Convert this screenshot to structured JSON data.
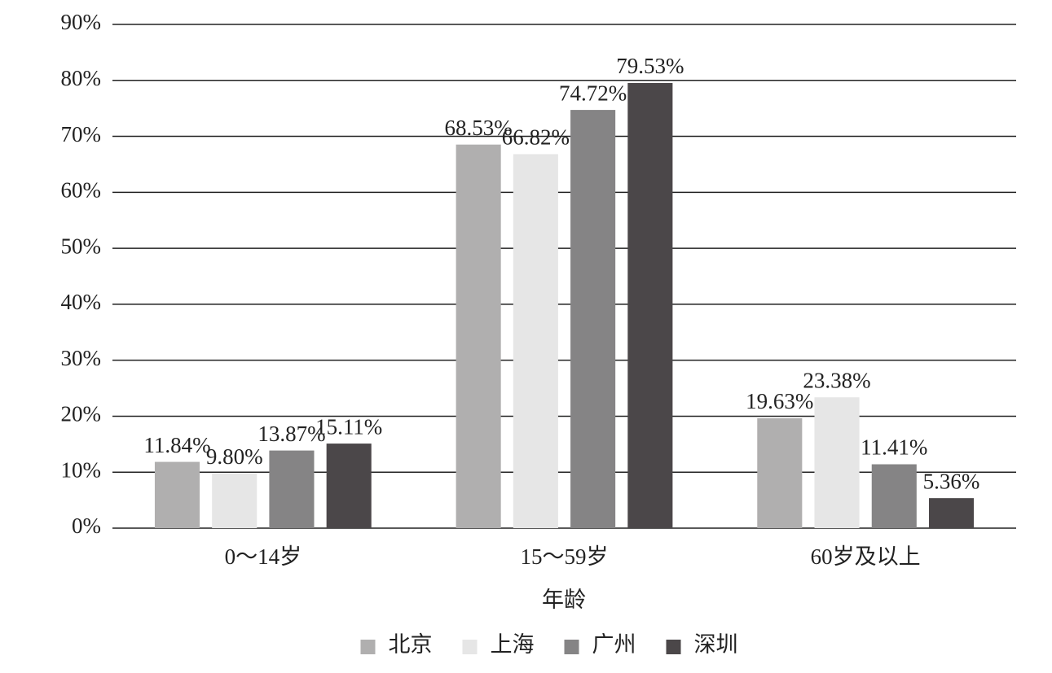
{
  "chart_data": {
    "type": "bar",
    "x_label": "年龄",
    "categories": [
      "0～14岁",
      "15～59岁",
      "60岁及以上"
    ],
    "series": [
      {
        "name": "北京",
        "color": "#b0afaf",
        "values": [
          11.84,
          68.53,
          19.63
        ],
        "value_labels": [
          "11.84%",
          "68.53%",
          "19.63%"
        ]
      },
      {
        "name": "上海",
        "color": "#e6e6e6",
        "values": [
          9.8,
          66.82,
          23.38
        ],
        "value_labels": [
          "9.80%",
          "66.82%",
          "23.38%"
        ]
      },
      {
        "name": "广州",
        "color": "#858485",
        "values": [
          13.87,
          74.72,
          11.41
        ],
        "value_labels": [
          "13.87%",
          "74.72%",
          "11.41%"
        ]
      },
      {
        "name": "深圳",
        "color": "#4b4749",
        "values": [
          15.11,
          79.53,
          5.36
        ],
        "value_labels": [
          "15.11%",
          "79.53%",
          "5.36%"
        ]
      }
    ],
    "ylim": [
      0,
      90
    ],
    "yticks": [
      {
        "value": 0,
        "label": "0%"
      },
      {
        "value": 10,
        "label": "10%"
      },
      {
        "value": 20,
        "label": "20%"
      },
      {
        "value": 30,
        "label": "30%"
      },
      {
        "value": 40,
        "label": "40%"
      },
      {
        "value": 50,
        "label": "50%"
      },
      {
        "value": 60,
        "label": "60%"
      },
      {
        "value": 70,
        "label": "70%"
      },
      {
        "value": 80,
        "label": "80%"
      },
      {
        "value": 90,
        "label": "90%"
      }
    ],
    "grid": true,
    "legend": "bottom"
  }
}
